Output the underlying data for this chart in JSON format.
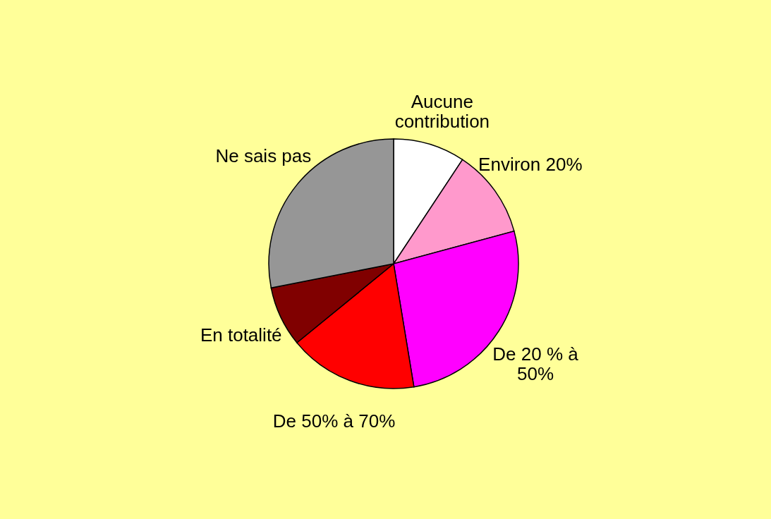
{
  "chart_data": {
    "type": "pie",
    "categories": [
      "Aucune contribution",
      "Environ 20%",
      "De 20 % à 50%",
      "De 50% à 70%",
      "En totalité",
      "Ne sais pas"
    ],
    "values": [
      9.3,
      11.5,
      26.6,
      16.7,
      7.8,
      28.1
    ],
    "colors": [
      "#ffffff",
      "#ff99cc",
      "#ff00ff",
      "#ff0000",
      "#800000",
      "#969696"
    ],
    "legend": false
  }
}
